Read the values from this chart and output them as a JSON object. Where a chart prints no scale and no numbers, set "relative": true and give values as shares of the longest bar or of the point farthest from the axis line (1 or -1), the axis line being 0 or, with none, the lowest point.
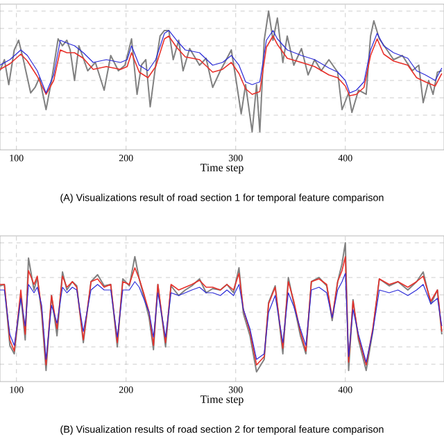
{
  "chart_data": [
    {
      "type": "line",
      "title": "(A) Visualizations result of road section 1 for temporal feature comparison",
      "xlabel": "Time step",
      "relative": true,
      "xlim": [
        85,
        490
      ],
      "xticks": [
        100,
        200,
        300,
        400
      ],
      "grid": true,
      "tick_labels": "x",
      "line_style": "solid",
      "series": [
        {
          "color": "#808080",
          "x": [
            85,
            89,
            93,
            98,
            102,
            106,
            113,
            117,
            121,
            127,
            132,
            138,
            142,
            146,
            149,
            153,
            157,
            165,
            172,
            180,
            186,
            193,
            199,
            205,
            210,
            214,
            218,
            222,
            227,
            231,
            235,
            239,
            243,
            248,
            252,
            258,
            267,
            273,
            279,
            286,
            292,
            296,
            300,
            305,
            309,
            315,
            319,
            322,
            326,
            330,
            334,
            338,
            343,
            347,
            353,
            360,
            366,
            372,
            378,
            385,
            393,
            397,
            403,
            406,
            412,
            419,
            423,
            426,
            431,
            438,
            444,
            452,
            461,
            467,
            471,
            476,
            480,
            484,
            488
          ],
          "values": [
            0.57,
            0.65,
            0.47,
            0.72,
            0.79,
            0.66,
            0.41,
            0.45,
            0.52,
            0.29,
            0.5,
            0.8,
            0.75,
            0.79,
            0.72,
            0.5,
            0.75,
            0.57,
            0.63,
            0.43,
            0.68,
            0.57,
            0.61,
            0.8,
            0.4,
            0.61,
            0.65,
            0.31,
            0.61,
            0.82,
            0.86,
            0.86,
            0.65,
            0.79,
            0.57,
            0.73,
            0.61,
            0.66,
            0.45,
            0.57,
            0.66,
            0.72,
            0.52,
            0.26,
            0.47,
            0.13,
            0.47,
            0.13,
            0.79,
            1.0,
            0.79,
            0.95,
            0.63,
            0.82,
            0.61,
            0.73,
            0.54,
            0.65,
            0.57,
            0.65,
            0.56,
            0.29,
            0.41,
            0.27,
            0.43,
            0.4,
            0.82,
            0.93,
            0.8,
            0.72,
            0.65,
            0.68,
            0.57,
            0.61,
            0.34,
            0.5,
            0.4,
            0.56,
            0.57
          ]
        },
        {
          "color": "#e8302a",
          "x": [
            85,
            94,
            104,
            110,
            119,
            127,
            134,
            140,
            146,
            153,
            161,
            170,
            182,
            195,
            201,
            205,
            212,
            220,
            227,
            235,
            239,
            246,
            254,
            267,
            279,
            288,
            296,
            303,
            309,
            315,
            322,
            328,
            334,
            338,
            347,
            360,
            372,
            385,
            393,
            400,
            404,
            410,
            417,
            423,
            429,
            435,
            444,
            457,
            465,
            473,
            482,
            488
          ],
          "values": [
            0.58,
            0.62,
            0.69,
            0.64,
            0.53,
            0.4,
            0.5,
            0.72,
            0.7,
            0.7,
            0.66,
            0.58,
            0.6,
            0.58,
            0.6,
            0.7,
            0.56,
            0.52,
            0.6,
            0.8,
            0.82,
            0.74,
            0.67,
            0.65,
            0.56,
            0.58,
            0.63,
            0.55,
            0.44,
            0.4,
            0.42,
            0.74,
            0.82,
            0.76,
            0.66,
            0.63,
            0.6,
            0.54,
            0.52,
            0.46,
            0.39,
            0.4,
            0.45,
            0.68,
            0.8,
            0.69,
            0.64,
            0.61,
            0.52,
            0.49,
            0.46,
            0.55
          ]
        },
        {
          "color": "#2a2ad8",
          "x": [
            85,
            94,
            104,
            110,
            119,
            127,
            134,
            140,
            146,
            153,
            161,
            170,
            182,
            195,
            201,
            205,
            212,
            220,
            227,
            235,
            239,
            246,
            254,
            267,
            279,
            288,
            296,
            303,
            309,
            315,
            322,
            328,
            334,
            338,
            347,
            360,
            372,
            385,
            393,
            400,
            404,
            410,
            417,
            423,
            429,
            435,
            444,
            457,
            465,
            473,
            482,
            488
          ],
          "values": [
            0.61,
            0.65,
            0.72,
            0.68,
            0.57,
            0.41,
            0.54,
            0.79,
            0.77,
            0.75,
            0.7,
            0.63,
            0.65,
            0.63,
            0.65,
            0.75,
            0.61,
            0.57,
            0.65,
            0.84,
            0.86,
            0.79,
            0.72,
            0.7,
            0.61,
            0.63,
            0.68,
            0.61,
            0.49,
            0.47,
            0.49,
            0.79,
            0.86,
            0.8,
            0.72,
            0.68,
            0.65,
            0.59,
            0.56,
            0.5,
            0.41,
            0.43,
            0.49,
            0.72,
            0.84,
            0.75,
            0.7,
            0.66,
            0.57,
            0.54,
            0.5,
            0.59
          ]
        }
      ]
    },
    {
      "type": "line",
      "title": "(B) Visualization results of road section 2 for temporal feature comparison",
      "xlabel": "Time step",
      "relative": true,
      "xlim": [
        85,
        490
      ],
      "xticks": [
        100,
        200,
        300,
        400
      ],
      "grid": true,
      "tick_labels": "x",
      "line_style": "solid",
      "x": [
        85,
        89,
        94,
        98,
        104,
        108,
        111,
        116,
        119,
        123,
        127,
        132,
        137,
        142,
        146,
        151,
        155,
        161,
        168,
        174,
        180,
        186,
        192,
        197,
        203,
        208,
        212,
        216,
        221,
        225,
        229,
        236,
        241,
        248,
        254,
        260,
        267,
        273,
        279,
        286,
        292,
        298,
        303,
        307,
        313,
        319,
        326,
        330,
        336,
        343,
        348,
        353,
        359,
        364,
        369,
        376,
        383,
        388,
        393,
        397,
        400,
        403,
        407,
        412,
        419,
        425,
        431,
        440,
        448,
        457,
        465,
        471,
        478,
        484,
        488
      ],
      "series": [
        {
          "color": "#808080",
          "values": [
            0.69,
            0.7,
            0.26,
            0.2,
            0.62,
            0.3,
            0.89,
            0.66,
            0.75,
            0.49,
            0.08,
            0.62,
            0.33,
            0.79,
            0.66,
            0.72,
            0.69,
            0.28,
            0.72,
            0.77,
            0.69,
            0.7,
            0.25,
            0.74,
            0.69,
            0.9,
            0.74,
            0.62,
            0.46,
            0.23,
            0.7,
            0.25,
            0.69,
            0.62,
            0.66,
            0.69,
            0.74,
            0.64,
            0.67,
            0.66,
            0.7,
            0.64,
            0.82,
            0.49,
            0.33,
            0.07,
            0.16,
            0.57,
            0.69,
            0.2,
            0.75,
            0.56,
            0.33,
            0.2,
            0.72,
            0.75,
            0.69,
            0.44,
            0.72,
            0.85,
            1.0,
            0.08,
            0.59,
            0.3,
            0.08,
            0.36,
            0.74,
            0.69,
            0.72,
            0.66,
            0.72,
            0.79,
            0.56,
            0.66,
            0.34
          ]
        },
        {
          "color": "#e8302a",
          "values": [
            0.7,
            0.7,
            0.3,
            0.22,
            0.66,
            0.34,
            0.8,
            0.7,
            0.76,
            0.52,
            0.12,
            0.62,
            0.38,
            0.76,
            0.68,
            0.72,
            0.68,
            0.3,
            0.72,
            0.74,
            0.68,
            0.7,
            0.28,
            0.72,
            0.7,
            0.82,
            0.74,
            0.64,
            0.5,
            0.26,
            0.7,
            0.28,
            0.7,
            0.66,
            0.68,
            0.7,
            0.73,
            0.68,
            0.68,
            0.66,
            0.7,
            0.66,
            0.78,
            0.52,
            0.36,
            0.12,
            0.18,
            0.56,
            0.68,
            0.24,
            0.72,
            0.58,
            0.36,
            0.22,
            0.72,
            0.74,
            0.7,
            0.46,
            0.72,
            0.8,
            0.9,
            0.14,
            0.58,
            0.32,
            0.12,
            0.38,
            0.74,
            0.7,
            0.72,
            0.68,
            0.72,
            0.76,
            0.58,
            0.66,
            0.36
          ]
        },
        {
          "color": "#2a2ad8",
          "values": [
            0.66,
            0.66,
            0.34,
            0.26,
            0.6,
            0.4,
            0.7,
            0.64,
            0.68,
            0.55,
            0.16,
            0.55,
            0.42,
            0.68,
            0.64,
            0.68,
            0.66,
            0.36,
            0.66,
            0.7,
            0.66,
            0.66,
            0.32,
            0.66,
            0.66,
            0.72,
            0.68,
            0.6,
            0.5,
            0.32,
            0.64,
            0.32,
            0.64,
            0.62,
            0.64,
            0.66,
            0.68,
            0.64,
            0.64,
            0.62,
            0.66,
            0.62,
            0.7,
            0.52,
            0.38,
            0.16,
            0.2,
            0.5,
            0.62,
            0.28,
            0.64,
            0.54,
            0.38,
            0.26,
            0.66,
            0.68,
            0.64,
            0.46,
            0.66,
            0.72,
            0.78,
            0.18,
            0.52,
            0.34,
            0.14,
            0.36,
            0.66,
            0.64,
            0.66,
            0.62,
            0.66,
            0.7,
            0.56,
            0.6,
            0.4
          ]
        }
      ]
    }
  ]
}
